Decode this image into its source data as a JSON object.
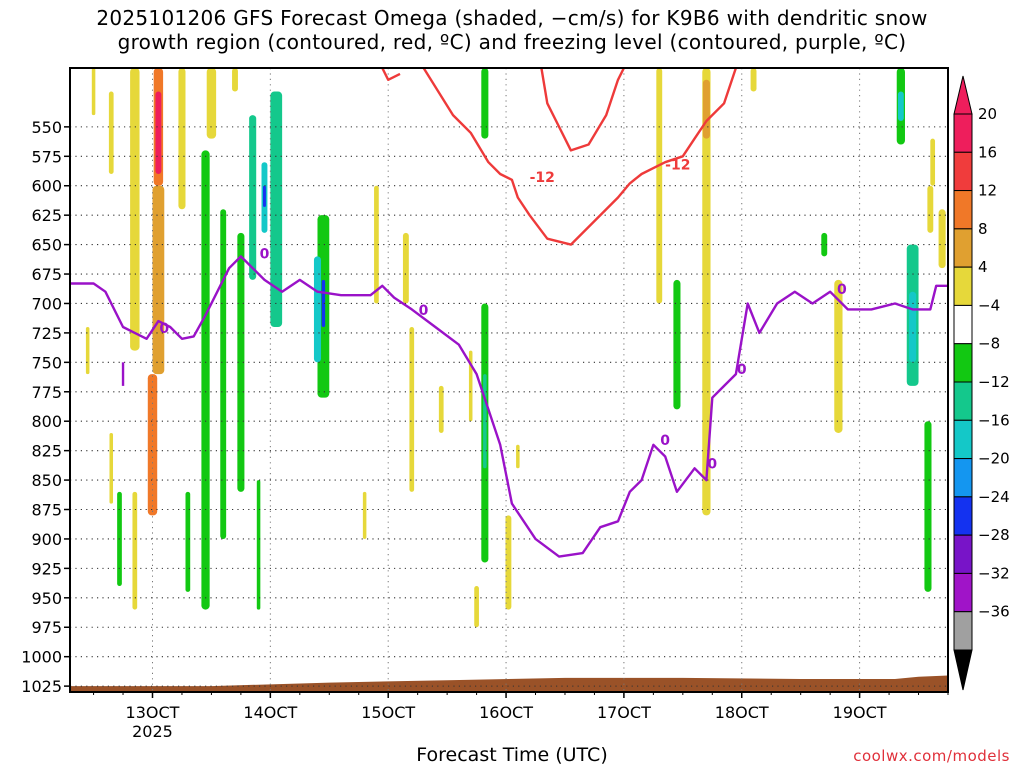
{
  "title": {
    "line1": "2025101206 GFS Forecast Omega (shaded, −cm/s) for K9B6 with dendritic snow",
    "line2": "growth region (contoured, red, ºC) and freezing level (contoured, purple, ºC)"
  },
  "xlabel": "Forecast Time (UTC)",
  "credit": "coolwx.com/models",
  "chart_data": {
    "type": "heatmap",
    "title": "2025101206 GFS Forecast Omega (shaded, −cm/s) for K9B6 with dendritic snow growth region (contoured, red, ºC) and freezing level (contoured, purple, ºC)",
    "xlabel": "Forecast Time (UTC)",
    "ylabel": "",
    "x_unit": "day of month (Oct 2025)",
    "x_range": [
      12.3,
      19.75
    ],
    "x_ticks": [
      {
        "value": 13,
        "label": "13OCT",
        "sublabel": "2025"
      },
      {
        "value": 14,
        "label": "14OCT",
        "sublabel": ""
      },
      {
        "value": 15,
        "label": "15OCT",
        "sublabel": ""
      },
      {
        "value": 16,
        "label": "16OCT",
        "sublabel": ""
      },
      {
        "value": 17,
        "label": "17OCT",
        "sublabel": ""
      },
      {
        "value": 18,
        "label": "18OCT",
        "sublabel": ""
      },
      {
        "value": 19,
        "label": "19OCT",
        "sublabel": ""
      }
    ],
    "y_unit": "hPa",
    "y_range": [
      500,
      1030
    ],
    "y_ticks": [
      550,
      575,
      600,
      625,
      650,
      675,
      700,
      725,
      750,
      775,
      800,
      825,
      850,
      875,
      900,
      925,
      950,
      975,
      1000,
      1025
    ],
    "grid": true,
    "colorbar": {
      "levels": [
        "20",
        "16",
        "12",
        "8",
        "4",
        "−4",
        "−8",
        "−12",
        "−16",
        "−20",
        "−24",
        "−28",
        "−32",
        "−36"
      ],
      "colors": [
        "#ee1e5c",
        "#f03c3c",
        "#f07828",
        "#e0a030",
        "#e6d83a",
        "#ffffff",
        "#12c812",
        "#14c88c",
        "#14c8c8",
        "#1496f0",
        "#1432f0",
        "#7814c8",
        "#a014c8",
        "#a0a0a0"
      ],
      "top_arrow_color": "#ee1e5c",
      "bottom_arrow_color": "#000000"
    },
    "omega_regions": [
      {
        "x": 13.05,
        "y0": 500,
        "y1": 600,
        "w": 0.08,
        "v": 12
      },
      {
        "x": 13.05,
        "y0": 520,
        "y1": 590,
        "w": 0.05,
        "v": 20
      },
      {
        "x": 13.05,
        "y0": 600,
        "y1": 760,
        "w": 0.1,
        "v": 8
      },
      {
        "x": 13.0,
        "y0": 760,
        "y1": 880,
        "w": 0.08,
        "v": 12
      },
      {
        "x": 12.85,
        "y0": 500,
        "y1": 740,
        "w": 0.08,
        "v": 6
      },
      {
        "x": 12.65,
        "y0": 520,
        "y1": 590,
        "w": 0.04,
        "v": 6
      },
      {
        "x": 13.25,
        "y0": 500,
        "y1": 620,
        "w": 0.06,
        "v": 6
      },
      {
        "x": 12.5,
        "y0": 500,
        "y1": 540,
        "w": 0.03,
        "v": 6
      },
      {
        "x": 13.5,
        "y0": 500,
        "y1": 560,
        "w": 0.08,
        "v": 6
      },
      {
        "x": 13.45,
        "y0": 570,
        "y1": 960,
        "w": 0.07,
        "v": -6
      },
      {
        "x": 13.6,
        "y0": 620,
        "y1": 900,
        "w": 0.05,
        "v": -6
      },
      {
        "x": 13.75,
        "y0": 640,
        "y1": 860,
        "w": 0.06,
        "v": -6
      },
      {
        "x": 13.85,
        "y0": 540,
        "y1": 680,
        "w": 0.06,
        "v": -8
      },
      {
        "x": 14.05,
        "y0": 520,
        "y1": 720,
        "w": 0.1,
        "v": -10
      },
      {
        "x": 13.95,
        "y0": 580,
        "y1": 640,
        "w": 0.05,
        "v": -14
      },
      {
        "x": 13.95,
        "y0": 600,
        "y1": 618,
        "w": 0.025,
        "v": -22
      },
      {
        "x": 14.45,
        "y0": 625,
        "y1": 780,
        "w": 0.1,
        "v": -6
      },
      {
        "x": 14.4,
        "y0": 660,
        "y1": 750,
        "w": 0.06,
        "v": -12
      },
      {
        "x": 14.45,
        "y0": 680,
        "y1": 720,
        "w": 0.03,
        "v": -20
      },
      {
        "x": 13.7,
        "y0": 500,
        "y1": 520,
        "w": 0.05,
        "v": 6
      },
      {
        "x": 14.9,
        "y0": 600,
        "y1": 700,
        "w": 0.04,
        "v": 6
      },
      {
        "x": 15.15,
        "y0": 640,
        "y1": 700,
        "w": 0.05,
        "v": 6
      },
      {
        "x": 15.2,
        "y0": 720,
        "y1": 860,
        "w": 0.04,
        "v": 6
      },
      {
        "x": 15.45,
        "y0": 770,
        "y1": 810,
        "w": 0.04,
        "v": 6
      },
      {
        "x": 15.75,
        "y0": 940,
        "y1": 975,
        "w": 0.04,
        "v": 6
      },
      {
        "x": 15.82,
        "y0": 500,
        "y1": 560,
        "w": 0.06,
        "v": -6
      },
      {
        "x": 15.82,
        "y0": 700,
        "y1": 920,
        "w": 0.06,
        "v": -6
      },
      {
        "x": 15.82,
        "y0": 760,
        "y1": 840,
        "w": 0.03,
        "v": -10
      },
      {
        "x": 16.02,
        "y0": 880,
        "y1": 960,
        "w": 0.05,
        "v": 6
      },
      {
        "x": 17.3,
        "y0": 500,
        "y1": 700,
        "w": 0.05,
        "v": 6
      },
      {
        "x": 17.45,
        "y0": 680,
        "y1": 790,
        "w": 0.06,
        "v": -6
      },
      {
        "x": 17.7,
        "y0": 500,
        "y1": 880,
        "w": 0.07,
        "v": 6
      },
      {
        "x": 17.7,
        "y0": 510,
        "y1": 560,
        "w": 0.06,
        "v": 10
      },
      {
        "x": 18.1,
        "y0": 500,
        "y1": 520,
        "w": 0.05,
        "v": 6
      },
      {
        "x": 18.82,
        "y0": 680,
        "y1": 810,
        "w": 0.07,
        "v": 6
      },
      {
        "x": 18.7,
        "y0": 640,
        "y1": 660,
        "w": 0.05,
        "v": -6
      },
      {
        "x": 19.35,
        "y0": 500,
        "y1": 565,
        "w": 0.07,
        "v": -6
      },
      {
        "x": 19.35,
        "y0": 520,
        "y1": 545,
        "w": 0.05,
        "v": -12
      },
      {
        "x": 19.45,
        "y0": 650,
        "y1": 770,
        "w": 0.1,
        "v": -8
      },
      {
        "x": 19.45,
        "y0": 690,
        "y1": 750,
        "w": 0.06,
        "v": -12
      },
      {
        "x": 19.58,
        "y0": 800,
        "y1": 945,
        "w": 0.06,
        "v": -6
      },
      {
        "x": 19.6,
        "y0": 600,
        "y1": 640,
        "w": 0.05,
        "v": 6
      },
      {
        "x": 19.7,
        "y0": 620,
        "y1": 670,
        "w": 0.06,
        "v": 6
      },
      {
        "x": 19.62,
        "y0": 560,
        "y1": 600,
        "w": 0.04,
        "v": 6
      },
      {
        "x": 12.45,
        "y0": 720,
        "y1": 760,
        "w": 0.03,
        "v": 6
      },
      {
        "x": 12.65,
        "y0": 810,
        "y1": 870,
        "w": 0.03,
        "v": 6
      },
      {
        "x": 12.72,
        "y0": 860,
        "y1": 940,
        "w": 0.04,
        "v": -6
      },
      {
        "x": 12.85,
        "y0": 860,
        "y1": 960,
        "w": 0.04,
        "v": 6
      },
      {
        "x": 13.3,
        "y0": 860,
        "y1": 945,
        "w": 0.04,
        "v": -6
      },
      {
        "x": 13.9,
        "y0": 850,
        "y1": 960,
        "w": 0.03,
        "v": -6
      },
      {
        "x": 14.8,
        "y0": 860,
        "y1": 900,
        "w": 0.03,
        "v": 6
      },
      {
        "x": 15.7,
        "y0": 740,
        "y1": 800,
        "w": 0.03,
        "v": 6
      },
      {
        "x": 16.1,
        "y0": 820,
        "y1": 840,
        "w": 0.03,
        "v": 6
      }
    ],
    "red_contour": {
      "label": "-12",
      "points": [
        [
          15.3,
          500
        ],
        [
          15.55,
          540
        ],
        [
          15.7,
          555
        ],
        [
          15.85,
          580
        ],
        [
          15.95,
          590
        ],
        [
          16.05,
          595
        ],
        [
          16.1,
          610
        ],
        [
          16.2,
          625
        ],
        [
          16.35,
          645
        ],
        [
          16.55,
          650
        ],
        [
          16.75,
          630
        ],
        [
          16.95,
          610
        ],
        [
          17.05,
          598
        ],
        [
          17.15,
          590
        ],
        [
          17.25,
          585
        ],
        [
          17.35,
          580
        ],
        [
          17.5,
          575
        ],
        [
          17.6,
          560
        ],
        [
          17.7,
          545
        ],
        [
          17.85,
          530
        ],
        [
          17.95,
          500
        ]
      ]
    },
    "red_contour_2": {
      "label": "",
      "points": [
        [
          16.3,
          500
        ],
        [
          16.35,
          530
        ],
        [
          16.45,
          550
        ],
        [
          16.55,
          570
        ],
        [
          16.7,
          565
        ],
        [
          16.85,
          540
        ],
        [
          16.95,
          510
        ],
        [
          17.0,
          500
        ]
      ]
    },
    "red_contour_3": {
      "label": "",
      "points": [
        [
          14.95,
          500
        ],
        [
          15.0,
          510
        ],
        [
          15.1,
          505
        ]
      ]
    },
    "purple_contour": {
      "label": "0",
      "points": [
        [
          12.3,
          683
        ],
        [
          12.5,
          683
        ],
        [
          12.6,
          690
        ],
        [
          12.75,
          720
        ],
        [
          12.85,
          725
        ],
        [
          12.95,
          730
        ],
        [
          13.05,
          715
        ],
        [
          13.15,
          720
        ],
        [
          13.25,
          730
        ],
        [
          13.35,
          728
        ],
        [
          13.45,
          710
        ],
        [
          13.55,
          690
        ],
        [
          13.65,
          670
        ],
        [
          13.75,
          660
        ],
        [
          13.85,
          670
        ],
        [
          13.95,
          680
        ],
        [
          14.1,
          690
        ],
        [
          14.25,
          680
        ],
        [
          14.4,
          690
        ],
        [
          14.6,
          693
        ],
        [
          14.85,
          693
        ],
        [
          14.95,
          685
        ],
        [
          15.05,
          695
        ],
        [
          15.2,
          705
        ],
        [
          15.4,
          720
        ],
        [
          15.6,
          735
        ],
        [
          15.75,
          760
        ],
        [
          15.85,
          790
        ],
        [
          15.95,
          820
        ],
        [
          16.05,
          870
        ],
        [
          16.25,
          900
        ],
        [
          16.45,
          915
        ],
        [
          16.65,
          912
        ],
        [
          16.8,
          890
        ],
        [
          16.95,
          885
        ],
        [
          17.05,
          860
        ],
        [
          17.15,
          850
        ],
        [
          17.25,
          820
        ],
        [
          17.35,
          830
        ],
        [
          17.45,
          860
        ],
        [
          17.6,
          840
        ],
        [
          17.7,
          850
        ],
        [
          17.75,
          780
        ],
        [
          17.85,
          770
        ],
        [
          17.95,
          760
        ],
        [
          18.05,
          700
        ],
        [
          18.15,
          725
        ],
        [
          18.3,
          700
        ],
        [
          18.45,
          690
        ],
        [
          18.6,
          700
        ],
        [
          18.75,
          690
        ],
        [
          18.9,
          705
        ],
        [
          19.1,
          705
        ],
        [
          19.3,
          700
        ],
        [
          19.45,
          705
        ],
        [
          19.6,
          705
        ],
        [
          19.65,
          685
        ],
        [
          19.75,
          685
        ]
      ]
    },
    "purple_labels": [
      [
        13.1,
        725
      ],
      [
        13.95,
        662
      ],
      [
        15.3,
        710
      ],
      [
        17.35,
        820
      ],
      [
        18.0,
        760
      ],
      [
        18.85,
        692
      ],
      [
        17.75,
        840
      ]
    ],
    "red_labels": [
      [
        16.2,
        597
      ],
      [
        17.35,
        586
      ]
    ],
    "ground": {
      "color": "#9a5228",
      "points": [
        [
          12.3,
          1025
        ],
        [
          13.5,
          1025
        ],
        [
          14.5,
          1022
        ],
        [
          15.5,
          1020
        ],
        [
          16.5,
          1018
        ],
        [
          17.5,
          1018
        ],
        [
          18.5,
          1019
        ],
        [
          19.3,
          1019
        ],
        [
          19.5,
          1017
        ],
        [
          19.75,
          1016
        ]
      ]
    }
  }
}
